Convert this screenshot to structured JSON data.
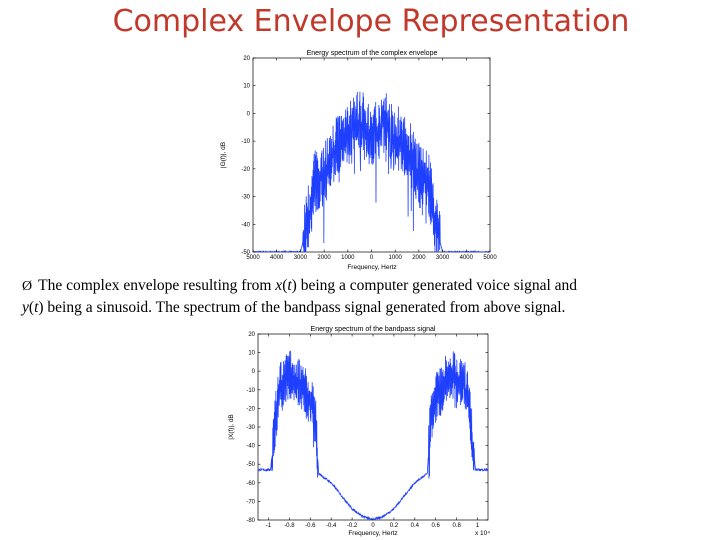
{
  "slide": {
    "title": "Complex Envelope Representation",
    "bullet_arrow": "Ø",
    "bullet_line1_a": "The complex envelope resulting from ",
    "bullet_line1_x": "x",
    "bullet_line1_b": "(",
    "bullet_line1_t": "t",
    "bullet_line1_c": ") being a computer generated voice signal and",
    "bullet_line2_y": "y",
    "bullet_line2_a": "(",
    "bullet_line2_t": "t",
    "bullet_line2_b": ") being a sinusoid. The spectrum of the bandpass signal generated from above signal."
  },
  "chart_data": [
    {
      "type": "line",
      "title": "Energy spectrum of the complex envelope",
      "xlabel": "Frequency, Hertz",
      "ylabel": "|G(f)|, dB",
      "xlim": [
        -5000,
        5000
      ],
      "ylim": [
        -50,
        20
      ],
      "xticks": [
        -5000,
        -4000,
        -3000,
        -2000,
        -1000,
        0,
        1000,
        2000,
        3000,
        4000,
        5000
      ],
      "xtick_labels": [
        "5000",
        "4000",
        "3000",
        "2000",
        "1000",
        "0",
        "1000",
        "2000",
        "3000",
        "4000",
        "5000"
      ],
      "yticks": [
        20,
        10,
        0,
        -10,
        -20,
        -30,
        -40,
        -50
      ],
      "ytick_labels": [
        "20",
        "10",
        "0",
        "-10",
        "-20",
        "-30",
        "-40",
        "-50"
      ],
      "color": "#1f3fff",
      "series": [
        {
          "x": [
            -5000,
            -3000,
            -2850,
            -2600,
            -2400,
            -2000,
            -1500,
            -1000,
            -500,
            -300,
            0,
            300,
            500,
            1000,
            1500,
            2000,
            2400,
            2600,
            2850,
            3000,
            5000
          ],
          "y": [
            -50,
            -50,
            -45,
            -35,
            -25,
            -22,
            -12,
            -8,
            -3,
            -5,
            -8,
            -5,
            -3,
            -8,
            -12,
            -22,
            -25,
            -35,
            -45,
            -50,
            -50
          ]
        }
      ]
    },
    {
      "type": "line",
      "title": "Energy spectrum of the bandpass signal",
      "xlabel": "Frequency, Hertz",
      "ylabel": "|X(f)|, dB",
      "x_multiplier": "x 10⁴",
      "xlim": [
        -1.1,
        1.1
      ],
      "ylim": [
        -80,
        20
      ],
      "xticks": [
        -1,
        -0.8,
        -0.6,
        -0.4,
        -0.2,
        0,
        0.2,
        0.4,
        0.6,
        0.8,
        1
      ],
      "xtick_labels": [
        "-1",
        "-0.8",
        "-0.6",
        "-0.4",
        "-0.2",
        "0",
        "0.2",
        "0.4",
        "0.6",
        "0.8",
        "1"
      ],
      "yticks": [
        20,
        10,
        0,
        -10,
        -20,
        -30,
        -40,
        -50,
        -60,
        -70,
        -80
      ],
      "ytick_labels": [
        "20",
        "10",
        "0",
        "-10",
        "-20",
        "-30",
        "-40",
        "-50",
        "-60",
        "-70",
        "-80"
      ],
      "color": "#1f3fff",
      "series": [
        {
          "x": [
            -1.1,
            -0.98,
            -0.95,
            -0.9,
            -0.8,
            -0.7,
            -0.6,
            -0.55,
            -0.52,
            -0.4,
            -0.3,
            -0.2,
            -0.1,
            0,
            0.1,
            0.2,
            0.3,
            0.4,
            0.52,
            0.55,
            0.6,
            0.7,
            0.8,
            0.9,
            0.95,
            0.98,
            1.1
          ],
          "y": [
            -53,
            -53,
            -35,
            -10,
            -2,
            -5,
            -15,
            -25,
            -55,
            -60,
            -67,
            -74,
            -78,
            -80,
            -78,
            -74,
            -67,
            -60,
            -55,
            -25,
            -15,
            -5,
            -2,
            -10,
            -35,
            -53,
            -53
          ]
        }
      ]
    }
  ]
}
